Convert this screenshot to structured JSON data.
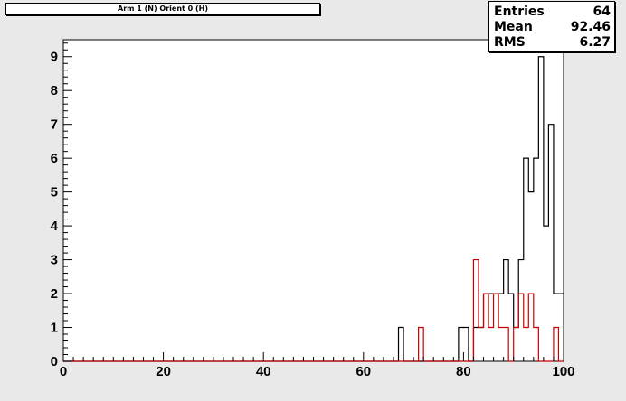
{
  "title": "Arm 1 (N) Orient 0 (H)",
  "stats": {
    "entries_label": "Entries",
    "entries_value": "64",
    "mean_label": "Mean",
    "mean_value": "92.46",
    "rms_label": "RMS",
    "rms_value": "6.27"
  },
  "chart_data": {
    "type": "histogram",
    "title": "Arm 1 (N) Orient 0 (H)",
    "xlabel": "",
    "ylabel": "",
    "xlim": [
      0,
      100
    ],
    "ylim": [
      0,
      9.5
    ],
    "bin_width": 1,
    "x_ticks": [
      0,
      20,
      40,
      60,
      80,
      100
    ],
    "y_ticks": [
      0,
      1,
      2,
      3,
      4,
      5,
      6,
      7,
      8,
      9
    ],
    "grid": false,
    "series": [
      {
        "color": "#000000",
        "bins": [
          {
            "x": 67,
            "v": 1
          },
          {
            "x": 79,
            "v": 1
          },
          {
            "x": 80,
            "v": 1
          },
          {
            "x": 82,
            "v": 1
          },
          {
            "x": 83,
            "v": 1
          },
          {
            "x": 84,
            "v": 2
          },
          {
            "x": 85,
            "v": 2
          },
          {
            "x": 86,
            "v": 2
          },
          {
            "x": 87,
            "v": 2
          },
          {
            "x": 88,
            "v": 3
          },
          {
            "x": 89,
            "v": 2
          },
          {
            "x": 90,
            "v": 1
          },
          {
            "x": 91,
            "v": 3
          },
          {
            "x": 92,
            "v": 6
          },
          {
            "x": 93,
            "v": 5
          },
          {
            "x": 94,
            "v": 6
          },
          {
            "x": 95,
            "v": 9
          },
          {
            "x": 96,
            "v": 4
          },
          {
            "x": 97,
            "v": 7
          },
          {
            "x": 98,
            "v": 2
          },
          {
            "x": 99,
            "v": 2
          }
        ]
      },
      {
        "color": "#cc0000",
        "bins": [
          {
            "x": 71,
            "v": 1
          },
          {
            "x": 82,
            "v": 3
          },
          {
            "x": 83,
            "v": 1
          },
          {
            "x": 84,
            "v": 2
          },
          {
            "x": 85,
            "v": 1
          },
          {
            "x": 86,
            "v": 2
          },
          {
            "x": 87,
            "v": 1
          },
          {
            "x": 88,
            "v": 1
          },
          {
            "x": 90,
            "v": 1
          },
          {
            "x": 91,
            "v": 2
          },
          {
            "x": 92,
            "v": 1
          },
          {
            "x": 93,
            "v": 2
          },
          {
            "x": 94,
            "v": 1
          },
          {
            "x": 98,
            "v": 1
          }
        ]
      }
    ]
  }
}
